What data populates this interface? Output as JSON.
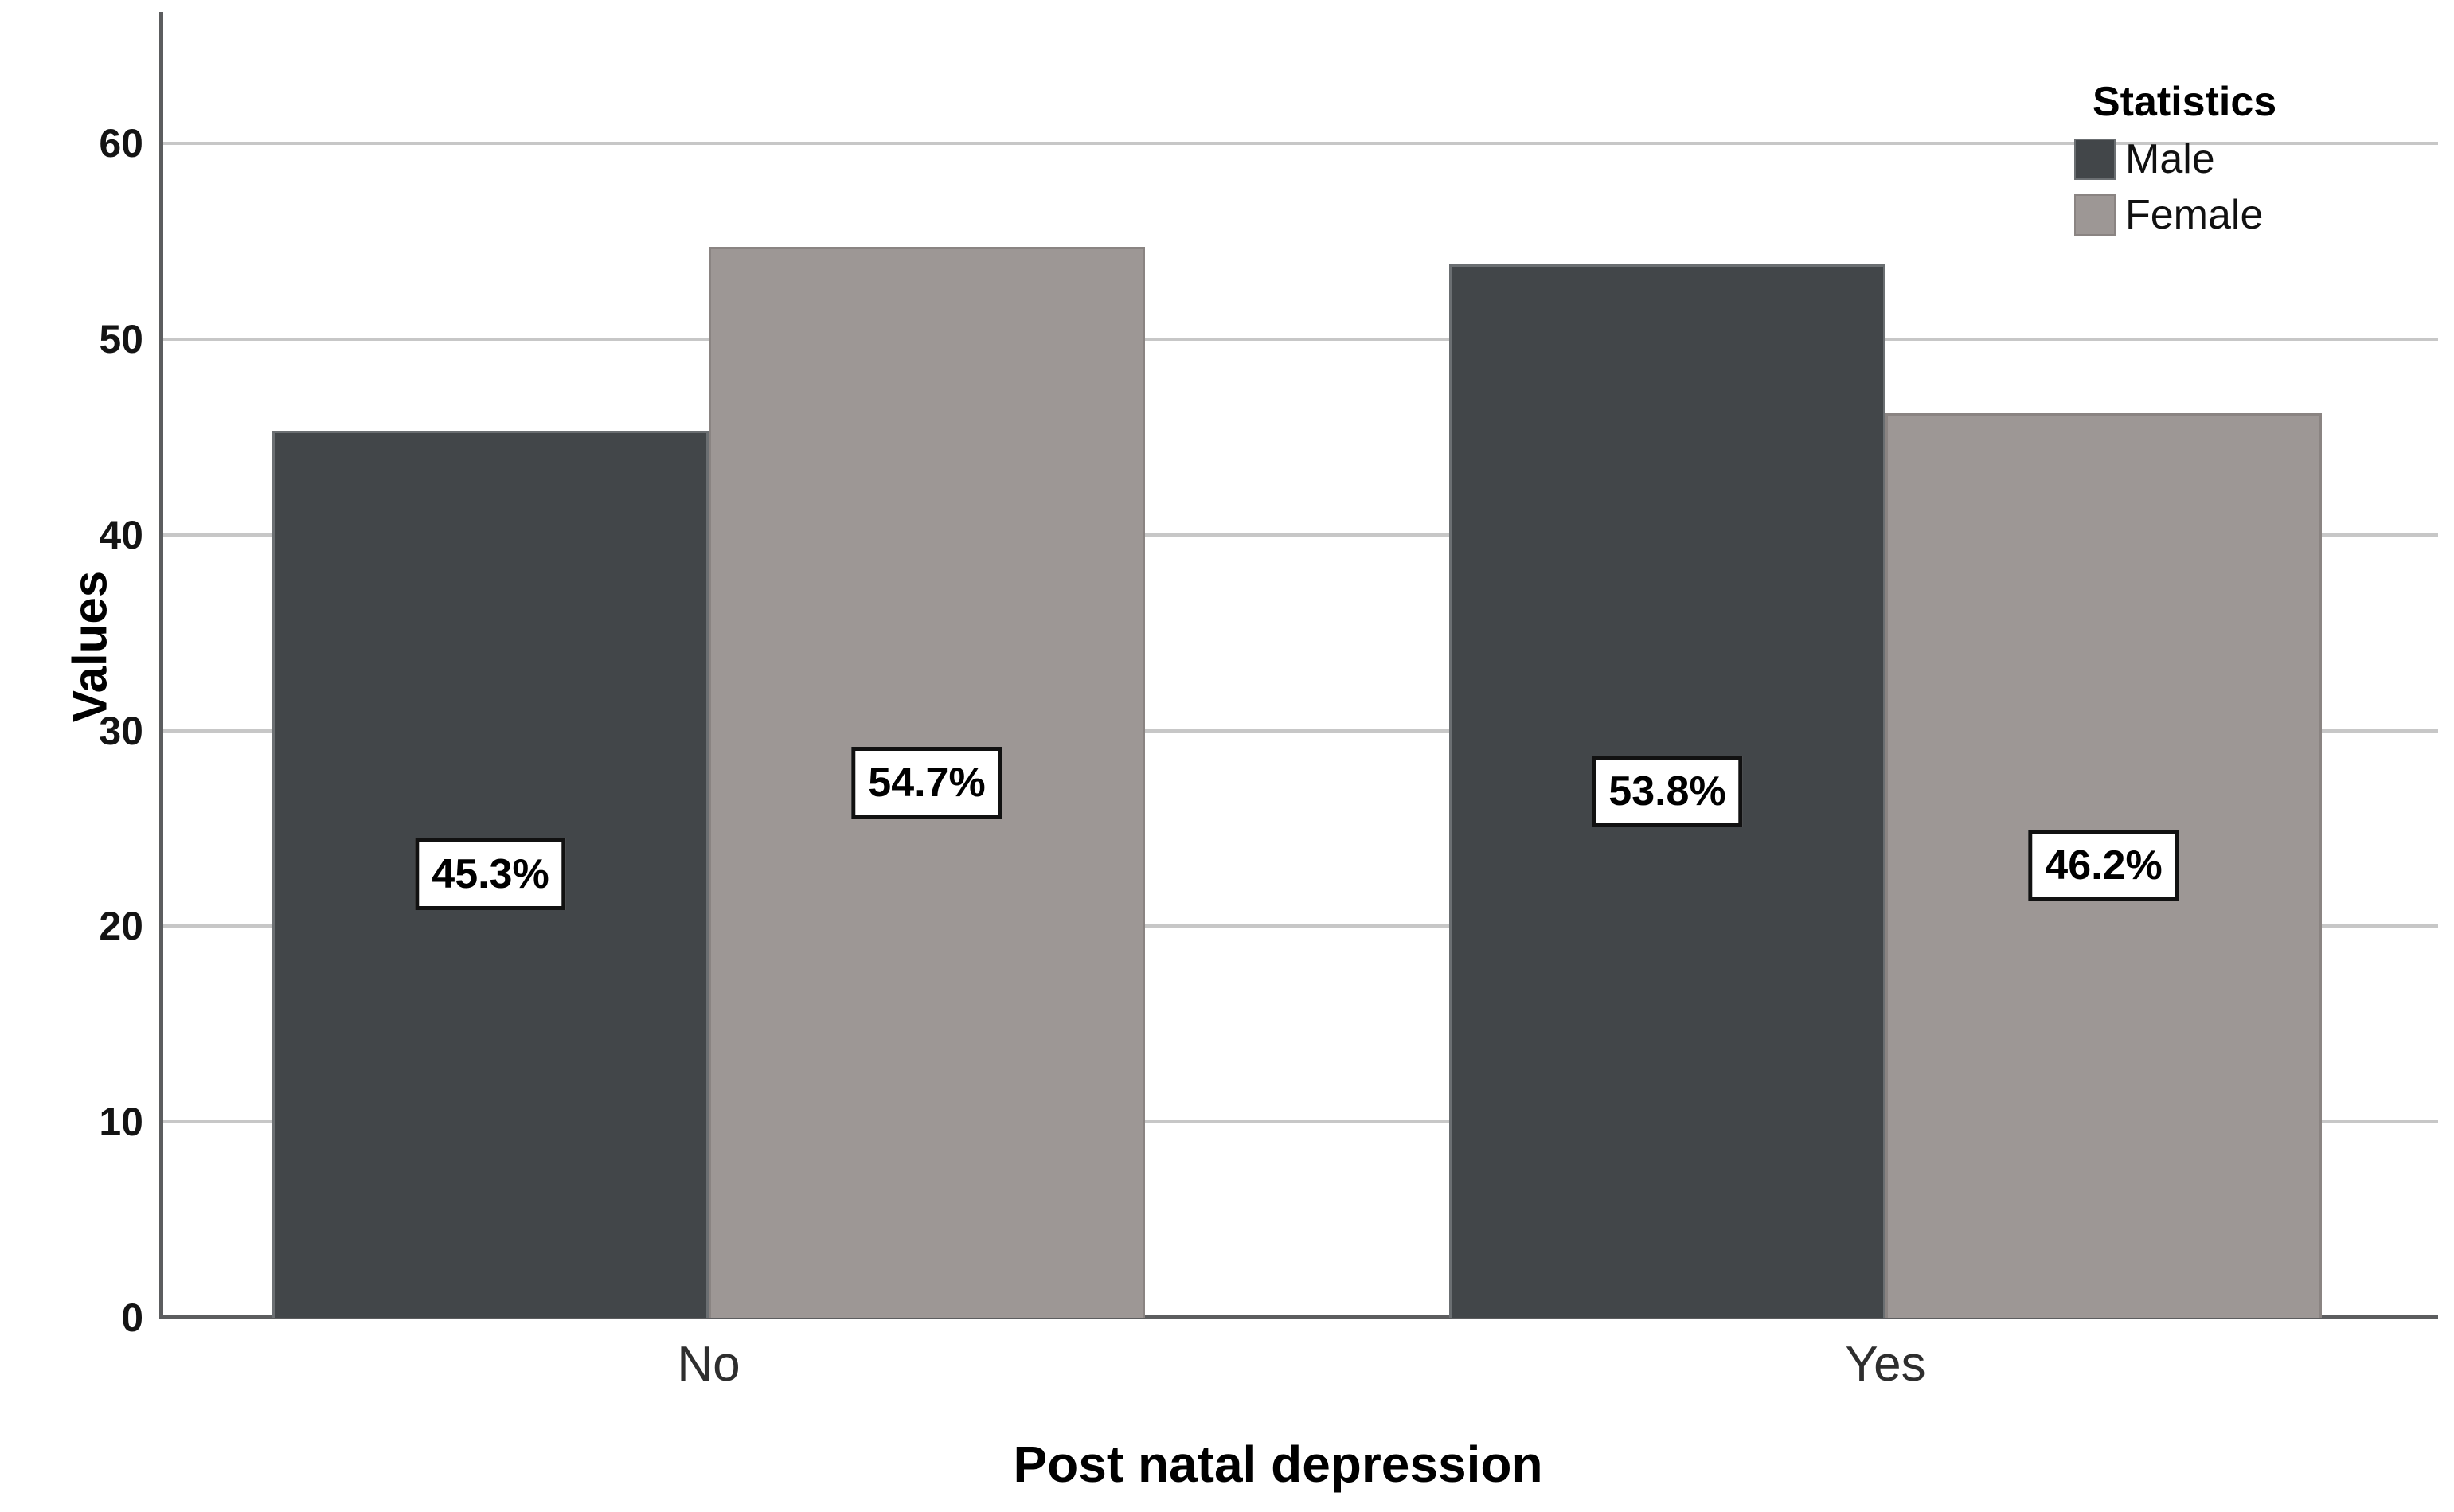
{
  "chart_data": {
    "type": "bar",
    "title": "",
    "xlabel": "Post natal depression",
    "ylabel": "Values",
    "categories": [
      "No",
      "Yes"
    ],
    "series": [
      {
        "name": "Male",
        "values": [
          45.3,
          53.8
        ],
        "labels": [
          "45.3%",
          "53.8%"
        ],
        "color": "#424649",
        "border_color": "#6b6f72"
      },
      {
        "name": "Female",
        "values": [
          54.7,
          46.2
        ],
        "labels": [
          "54.7%",
          "46.2%"
        ],
        "color": "#9d9795",
        "border_color": "#8a8482"
      }
    ],
    "ylim": [
      0,
      60
    ],
    "yticks": [
      0,
      10,
      20,
      30,
      40,
      50,
      60
    ],
    "grid": "horizontal",
    "legend_title": "Statistics",
    "legend_position": "top-right"
  },
  "colors": {
    "gridline": "#c7c7c7",
    "axis": "#5c5d5f",
    "background": "#ffffff",
    "value_label_border": "#111111"
  }
}
